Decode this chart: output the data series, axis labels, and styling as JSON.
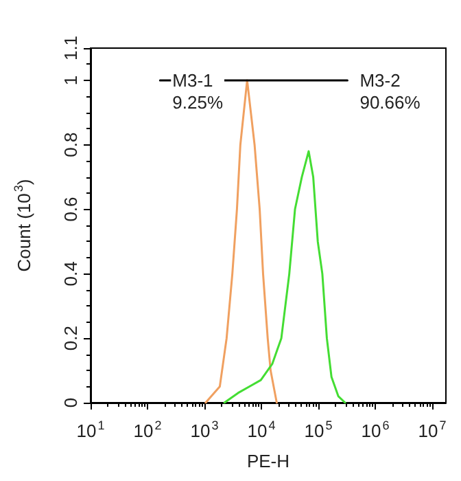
{
  "chart_data": {
    "type": "line",
    "xlabel": "PE-H",
    "ylabel": "Count (10$^{3}$)",
    "log": "x",
    "xlim": [
      10,
      17378000
    ],
    "xticks": [
      {
        "value": 10,
        "label": "10$^{1}$"
      },
      {
        "value": 100,
        "label": "10$^{2}$"
      },
      {
        "value": 1000,
        "label": "10$^{3}$"
      },
      {
        "value": 10000,
        "label": "10$^{4}$"
      },
      {
        "value": 100000,
        "label": "10$^{5}$"
      },
      {
        "value": 1000000,
        "label": "10$^{6}$"
      },
      {
        "value": 10000000,
        "label": "10$^{7}$"
      }
    ],
    "ylim": [
      0,
      1.1
    ],
    "yticks": [
      0,
      0.2,
      0.4,
      0.6,
      0.8,
      1,
      1.1
    ],
    "grid": false,
    "marker": "none",
    "line_style": "solid",
    "series": [
      {
        "color": "#f0a060",
        "x": [
          1050,
          1860,
          2450,
          3090,
          3720,
          4270,
          5620,
          7590,
          9330,
          10700,
          12900,
          14500,
          18600
        ],
        "values": [
          0,
          0.05,
          0.2,
          0.4,
          0.6,
          0.8,
          1.0,
          0.8,
          0.6,
          0.4,
          0.2,
          0.1,
          0
        ]
      },
      {
        "color": "#44dd33",
        "x": [
          2240,
          3890,
          6170,
          9770,
          15500,
          22400,
          30900,
          38900,
          51300,
          67600,
          81300,
          97700,
          117500,
          141000,
          170000,
          224000,
          295000
        ],
        "values": [
          0,
          0.03,
          0.05,
          0.07,
          0.12,
          0.2,
          0.4,
          0.6,
          0.7,
          0.78,
          0.7,
          0.5,
          0.4,
          0.2,
          0.08,
          0.02,
          0
        ]
      },
      {
        "color": "#000000",
        "x": [
          166,
          15850,
          324000
        ],
        "values": [
          1,
          1,
          1
        ]
      }
    ],
    "annotations": [
      {
        "text": "M3-1\n9.25%",
        "x": 166,
        "y": 1
      },
      {
        "text": "M3-2\n90.66%",
        "x": 324000,
        "y": 1
      }
    ]
  }
}
